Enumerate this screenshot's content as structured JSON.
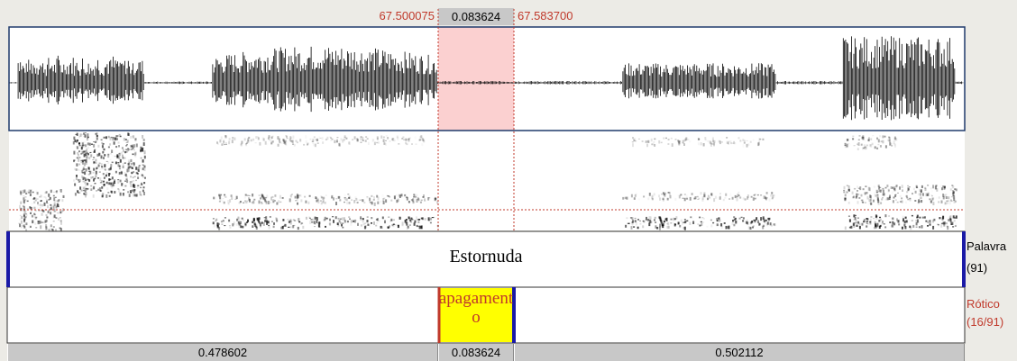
{
  "selection": {
    "start": "67.500075",
    "duration": "0.083624",
    "end": "67.583700"
  },
  "tiers": [
    {
      "name": "Palavra",
      "count": "(91)",
      "intervals": [
        "Estornuda"
      ]
    },
    {
      "name": "Rótico",
      "count": "(16/91)",
      "intervals": [
        "apagamento"
      ]
    }
  ],
  "durations": [
    "0.478602",
    "0.083624",
    "0.502112"
  ]
}
